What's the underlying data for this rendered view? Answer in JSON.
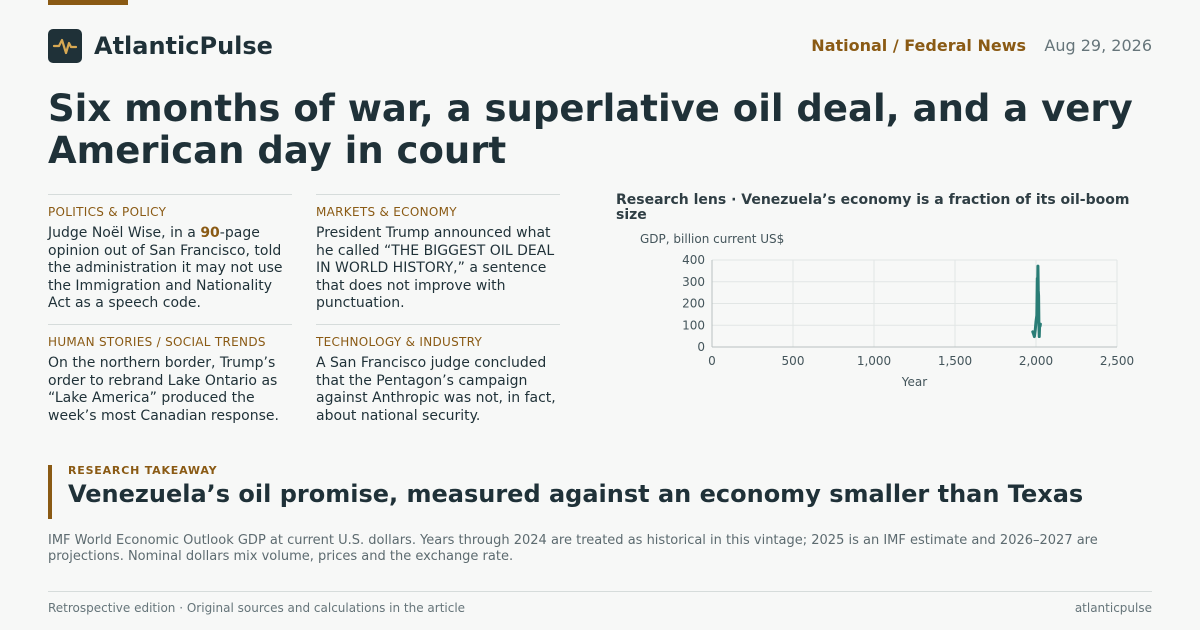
{
  "colors": {
    "accent": "#8a5a14",
    "brand": "#1f3138",
    "series": "#2a7d76"
  },
  "brand": {
    "name": "AtlanticPulse",
    "icon": "pulse-icon"
  },
  "header": {
    "section": "National / Federal News",
    "date": "Aug 29, 2026"
  },
  "headline": "Six months of war, a superlative oil deal, and a very American day in court",
  "briefs": [
    {
      "tag": "POLITICS & POLICY",
      "pre": "Judge Noël Wise, in a ",
      "highlight": "90",
      "post": "-page opinion out of San Francisco, told the administration it may not use the Immigration and Nationality Act as a speech code."
    },
    {
      "tag": "MARKETS & ECONOMY",
      "text": "President Trump announced what he called “THE BIGGEST OIL DEAL IN WORLD HISTORY,” a sentence that does not improve with punctuation."
    },
    {
      "tag": "HUMAN STORIES / SOCIAL TRENDS",
      "text": "On the northern border, Trump’s order to rebrand Lake Ontario as “Lake America” produced the week’s most Canadian response."
    },
    {
      "tag": "TECHNOLOGY & INDUSTRY",
      "text": "A San Francisco judge concluded that the Pentagon’s campaign against Anthropic was not, in fact, about national security."
    }
  ],
  "chart_data": {
    "type": "line",
    "title": "Research lens · Venezuela’s economy is a fraction of its oil-boom size",
    "ylabel": "GDP, billion current US$",
    "xlabel": "Year",
    "xlim": [
      0,
      2500
    ],
    "ylim": [
      0,
      400
    ],
    "x_ticks": [
      "0",
      "500",
      "1,000",
      "1,500",
      "2,000",
      "2,500"
    ],
    "y_ticks": [
      "0",
      "100",
      "200",
      "300",
      "400"
    ],
    "grid": true,
    "series": [
      {
        "x": [
          1980,
          1985,
          1990,
          1995,
          2000,
          2005,
          2008,
          2010,
          2012,
          2014,
          2016,
          2018,
          2020,
          2022,
          2024,
          2025,
          2026,
          2027
        ],
        "values": [
          70,
          60,
          48,
          75,
          117,
          145,
          315,
          272,
          372,
          260,
          235,
          98,
          48,
          92,
          102,
          95,
          100,
          105
        ]
      }
    ]
  },
  "takeaway": {
    "tag": "RESEARCH TAKEAWAY",
    "title": "Venezuela’s oil promise, measured against an economy smaller than Texas"
  },
  "note": "IMF World Economic Outlook GDP at current U.S. dollars. Years through 2024 are treated as historical in this vintage; 2025 is an IMF estimate and 2026–2027 are projections. Nominal dollars mix volume, prices and the exchange rate.",
  "footer": {
    "left": "Retrospective edition · Original sources and calculations in the article",
    "right": "atlanticpulse"
  }
}
